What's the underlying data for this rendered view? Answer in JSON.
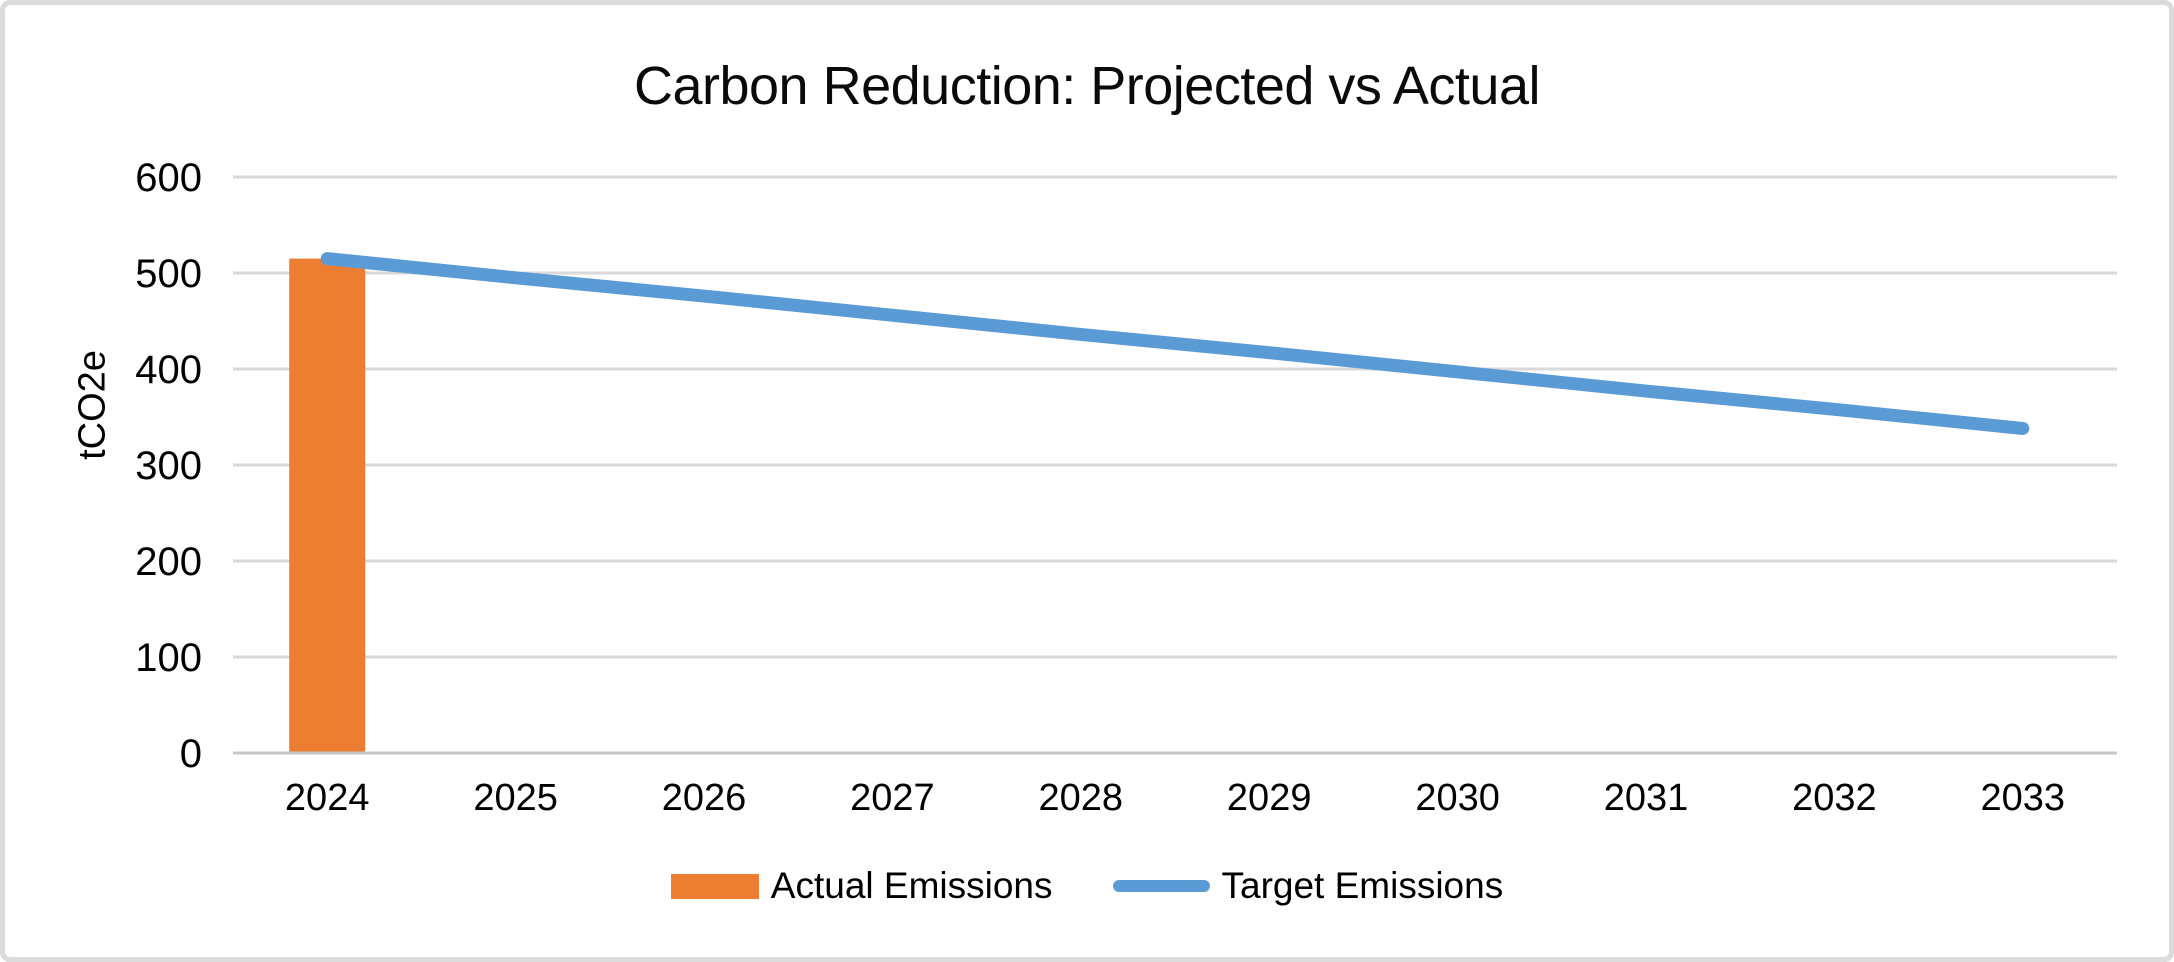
{
  "chart_data": {
    "type": "bar",
    "title": "Carbon Reduction: Projected vs Actual",
    "xlabel": "",
    "ylabel": "tCO2e",
    "categories": [
      "2024",
      "2025",
      "2026",
      "2027",
      "2028",
      "2029",
      "2030",
      "2031",
      "2032",
      "2033"
    ],
    "series": [
      {
        "name": "Actual Emissions",
        "type": "bar",
        "color": "#ED7D31",
        "values": [
          515,
          null,
          null,
          null,
          null,
          null,
          null,
          null,
          null,
          null
        ]
      },
      {
        "name": "Target Emissions",
        "type": "line",
        "color": "#5B9BD5",
        "values": [
          515,
          495,
          476,
          456,
          436,
          417,
          397,
          377,
          358,
          338
        ]
      }
    ],
    "ylim": [
      0,
      600
    ],
    "ytick_step": 100,
    "yticks": [
      0,
      100,
      200,
      300,
      400,
      500,
      600
    ],
    "grid": true,
    "legend_position": "bottom"
  },
  "styles": {
    "gridline_color": "#D9D9D9",
    "axis_line_color": "#C8C6C6",
    "text_color": "#000000",
    "background": "#FFFFFF",
    "border_color": "#DBDBDB",
    "actual_color": "#ED7D31",
    "target_color": "#5B9BD5"
  }
}
